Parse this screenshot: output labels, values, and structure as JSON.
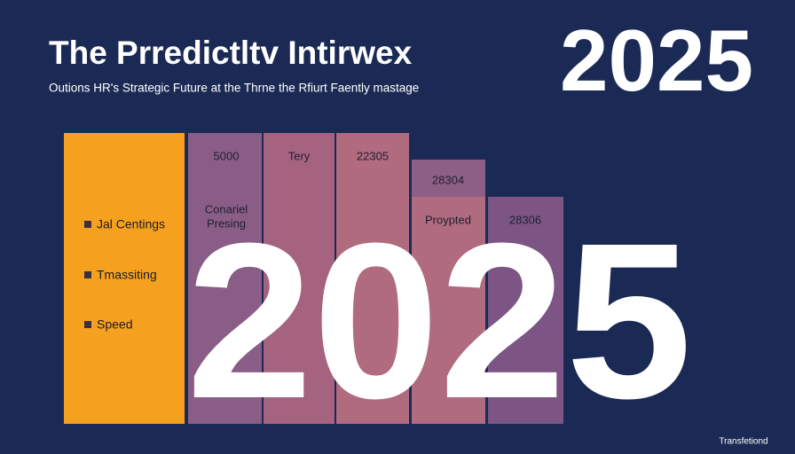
{
  "header": {
    "title": "The Prredictltv Intirwex",
    "subtitle": "Outions HR's Strategic Future at the Thrne the Rfiurt Faently mastage",
    "year": "2025"
  },
  "legend": {
    "items": [
      "Jal Centings",
      "Tmassiting",
      "Speed"
    ]
  },
  "columns": [
    {
      "top_label": "5000",
      "mid_label": [
        "Conariel",
        "Presing"
      ]
    },
    {
      "top_label": "Tery"
    },
    {
      "top_label": "22305"
    },
    {
      "top_label": "28304",
      "mid_label": [
        "Proypted"
      ]
    },
    {
      "mid_label": [
        "28306"
      ]
    }
  ],
  "overlay": "2025",
  "footer": "Transfetiond"
}
